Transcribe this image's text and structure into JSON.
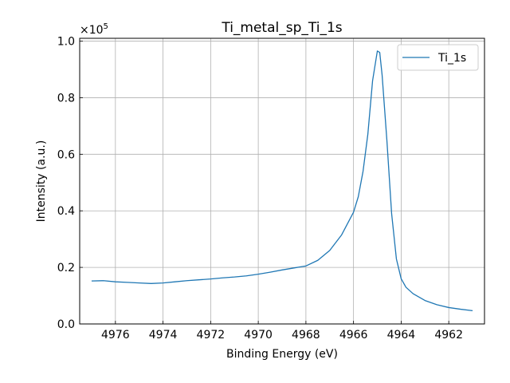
{
  "chart_data": {
    "type": "line",
    "title": "Ti_metal_sp_Ti_1s",
    "xlabel": "Binding Energy (eV)",
    "ylabel": "Intensity (a.u.)",
    "y_scale_label": "×10",
    "y_scale_exponent": "5",
    "x_reversed": true,
    "xlim": [
      4977.5,
      4960.5
    ],
    "ylim": [
      0,
      101000
    ],
    "x_ticks": [
      4976,
      4974,
      4972,
      4970,
      4968,
      4966,
      4964,
      4962
    ],
    "y_ticks": [
      0,
      20000,
      40000,
      60000,
      80000,
      100000
    ],
    "y_tick_labels": [
      "0.0",
      "0.2",
      "0.4",
      "0.6",
      "0.8",
      "1.0"
    ],
    "grid": true,
    "legend_position": "top-right",
    "series": [
      {
        "name": "Ti_1s",
        "color": "#1f77b4",
        "x": [
          4977.0,
          4976.5,
          4976.0,
          4975.5,
          4975.0,
          4974.5,
          4974.0,
          4973.5,
          4973.0,
          4972.5,
          4972.0,
          4971.5,
          4971.0,
          4970.5,
          4970.0,
          4969.5,
          4969.0,
          4968.5,
          4968.0,
          4967.5,
          4967.0,
          4966.5,
          4966.0,
          4965.8,
          4965.6,
          4965.4,
          4965.2,
          4965.0,
          4964.9,
          4964.8,
          4964.6,
          4964.4,
          4964.2,
          4964.0,
          4963.8,
          4963.5,
          4963.0,
          4962.5,
          4962.0,
          4961.5,
          4961.0
        ],
        "y": [
          15200,
          15300,
          14900,
          14700,
          14500,
          14300,
          14500,
          14900,
          15300,
          15600,
          15900,
          16300,
          16600,
          17000,
          17600,
          18300,
          19100,
          19800,
          20500,
          22500,
          26000,
          31500,
          39500,
          45000,
          54000,
          67000,
          86000,
          96500,
          96000,
          88000,
          65000,
          39000,
          23000,
          16000,
          13000,
          10700,
          8300,
          6800,
          5800,
          5200,
          4700
        ]
      }
    ]
  }
}
